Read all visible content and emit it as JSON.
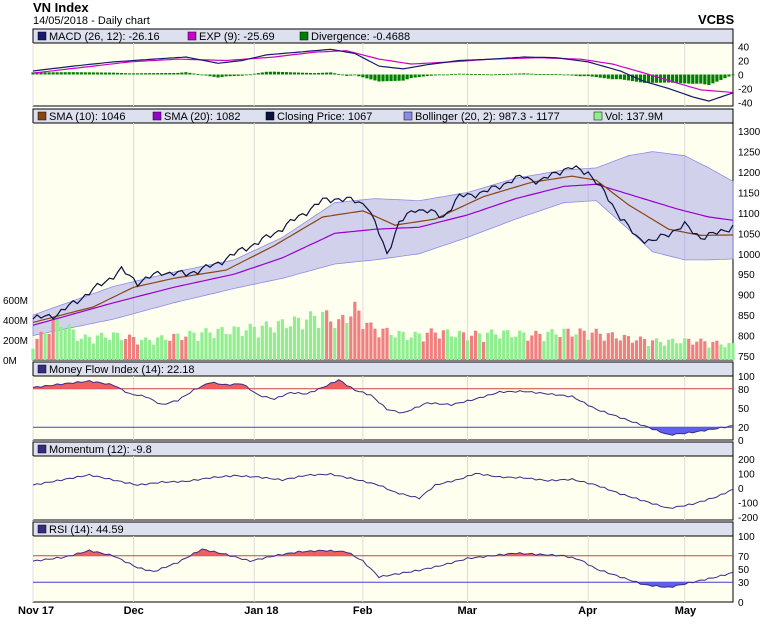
{
  "title": "VN Index",
  "subtitle": "14/05/2018 - Daily chart",
  "source": "VCBS",
  "x_labels": [
    "Nov 17",
    "Dec",
    "Jan 18",
    "Feb",
    "Mar",
    "Apr",
    "May"
  ],
  "colors": {
    "panel_bg": "#fffff0",
    "legend_bg": "#dde0ee",
    "grid": "#dcdcdc",
    "macd": "#191970",
    "exp": "#cc00cc",
    "divergence": "#008000",
    "sma10": "#8b4513",
    "sma20": "#9900cc",
    "close": "#0b1140",
    "bollinger": "#8c8ce6",
    "vol_up": "#90ee90",
    "vol_down": "#f08080",
    "indicator_line": "#3a2a88",
    "overbought_fill": "#f06060",
    "oversold_fill": "#6060ee"
  },
  "panels": {
    "macd": {
      "legend": [
        "MACD (26, 12): -26.16",
        "EXP (9): -25.69",
        "Divergence: -0.4688"
      ],
      "yticks": [
        "40",
        "20",
        "0",
        "-20",
        "-40"
      ]
    },
    "price": {
      "legend": [
        "SMA (10): 1046",
        "SMA (20): 1082",
        "Closing Price: 1067",
        "Bollinger (20, 2): 987.3 - 1177",
        "Vol: 137.9M"
      ],
      "yticks": [
        "1300",
        "1250",
        "1200",
        "1150",
        "1100",
        "1050",
        "1000",
        "950",
        "900",
        "850",
        "800",
        "750"
      ],
      "vol_ticks": [
        "600M",
        "400M",
        "200M",
        "0M"
      ]
    },
    "mfi": {
      "legend": [
        "Money Flow Index (14): 22.18"
      ],
      "yticks": [
        "100",
        "80",
        "50",
        "20",
        "0"
      ]
    },
    "momentum": {
      "legend": [
        "Momentum (12): -9.8"
      ],
      "yticks": [
        "200",
        "100",
        "0",
        "-100",
        "-200"
      ]
    },
    "rsi": {
      "legend": [
        "RSI (14): 44.59"
      ],
      "yticks": [
        "100",
        "70",
        "50",
        "30",
        "0"
      ]
    }
  },
  "chart_data": {
    "type": "line",
    "title": "VN Index",
    "x_key_labels": [
      "Nov 17",
      "Dec",
      "Jan 18",
      "Feb",
      "Mar",
      "Apr",
      "May"
    ],
    "price_ylim": [
      750,
      1300
    ],
    "close_keys": [
      [
        0,
        840
      ],
      [
        6,
        852
      ],
      [
        14,
        905
      ],
      [
        22,
        960
      ],
      [
        26,
        930
      ],
      [
        32,
        955
      ],
      [
        38,
        950
      ],
      [
        45,
        972
      ],
      [
        52,
        1010
      ],
      [
        56,
        1028
      ],
      [
        60,
        1050
      ],
      [
        66,
        1090
      ],
      [
        72,
        1130
      ],
      [
        75,
        1135
      ],
      [
        80,
        1130
      ],
      [
        83,
        1120
      ],
      [
        86,
        1050
      ],
      [
        88,
        1000
      ],
      [
        91,
        1075
      ],
      [
        95,
        1110
      ],
      [
        98,
        1105
      ],
      [
        102,
        1090
      ],
      [
        106,
        1140
      ],
      [
        112,
        1150
      ],
      [
        118,
        1175
      ],
      [
        122,
        1190
      ],
      [
        126,
        1175
      ],
      [
        130,
        1200
      ],
      [
        134,
        1210
      ],
      [
        138,
        1200
      ],
      [
        142,
        1150
      ],
      [
        146,
        1090
      ],
      [
        150,
        1040
      ],
      [
        154,
        1030
      ],
      [
        158,
        1050
      ],
      [
        162,
        1070
      ],
      [
        166,
        1040
      ],
      [
        170,
        1050
      ],
      [
        174,
        1067
      ]
    ],
    "sma10_keys": [
      [
        0,
        832
      ],
      [
        15,
        870
      ],
      [
        25,
        918
      ],
      [
        35,
        940
      ],
      [
        48,
        960
      ],
      [
        60,
        1020
      ],
      [
        72,
        1090
      ],
      [
        82,
        1105
      ],
      [
        90,
        1070
      ],
      [
        100,
        1085
      ],
      [
        112,
        1140
      ],
      [
        124,
        1175
      ],
      [
        134,
        1190
      ],
      [
        140,
        1180
      ],
      [
        148,
        1120
      ],
      [
        158,
        1060
      ],
      [
        166,
        1045
      ],
      [
        174,
        1046
      ]
    ],
    "sma20_keys": [
      [
        0,
        825
      ],
      [
        20,
        880
      ],
      [
        35,
        918
      ],
      [
        50,
        950
      ],
      [
        62,
        990
      ],
      [
        75,
        1050
      ],
      [
        85,
        1060
      ],
      [
        96,
        1065
      ],
      [
        108,
        1095
      ],
      [
        120,
        1135
      ],
      [
        132,
        1165
      ],
      [
        140,
        1170
      ],
      [
        150,
        1140
      ],
      [
        160,
        1110
      ],
      [
        168,
        1090
      ],
      [
        174,
        1082
      ]
    ],
    "boll_upper_keys": [
      [
        0,
        850
      ],
      [
        20,
        920
      ],
      [
        35,
        955
      ],
      [
        50,
        985
      ],
      [
        62,
        1040
      ],
      [
        75,
        1125
      ],
      [
        85,
        1135
      ],
      [
        96,
        1130
      ],
      [
        108,
        1150
      ],
      [
        120,
        1185
      ],
      [
        132,
        1205
      ],
      [
        140,
        1210
      ],
      [
        148,
        1240
      ],
      [
        154,
        1250
      ],
      [
        162,
        1240
      ],
      [
        168,
        1210
      ],
      [
        174,
        1177
      ]
    ],
    "boll_lower_keys": [
      [
        0,
        800
      ],
      [
        20,
        840
      ],
      [
        35,
        880
      ],
      [
        50,
        915
      ],
      [
        62,
        940
      ],
      [
        75,
        975
      ],
      [
        85,
        985
      ],
      [
        96,
        1000
      ],
      [
        108,
        1040
      ],
      [
        120,
        1085
      ],
      [
        132,
        1125
      ],
      [
        140,
        1130
      ],
      [
        148,
        1060
      ],
      [
        154,
        1005
      ],
      [
        162,
        985
      ],
      [
        168,
        985
      ],
      [
        174,
        987.3
      ]
    ],
    "volume_keys": [
      [
        0,
        150
      ],
      [
        6,
        380
      ],
      [
        12,
        200
      ],
      [
        20,
        230
      ],
      [
        28,
        180
      ],
      [
        36,
        220
      ],
      [
        44,
        260
      ],
      [
        52,
        280
      ],
      [
        60,
        320
      ],
      [
        66,
        360
      ],
      [
        72,
        420
      ],
      [
        76,
        340
      ],
      [
        80,
        470
      ],
      [
        84,
        300
      ],
      [
        88,
        260
      ],
      [
        94,
        220
      ],
      [
        100,
        260
      ],
      [
        108,
        230
      ],
      [
        116,
        250
      ],
      [
        124,
        230
      ],
      [
        132,
        260
      ],
      [
        140,
        250
      ],
      [
        148,
        200
      ],
      [
        156,
        170
      ],
      [
        164,
        180
      ],
      [
        174,
        138
      ]
    ],
    "macd_keys": [
      [
        0,
        5
      ],
      [
        10,
        12
      ],
      [
        20,
        18
      ],
      [
        30,
        22
      ],
      [
        38,
        25
      ],
      [
        46,
        16
      ],
      [
        52,
        20
      ],
      [
        58,
        28
      ],
      [
        66,
        32
      ],
      [
        74,
        36
      ],
      [
        80,
        30
      ],
      [
        86,
        12
      ],
      [
        92,
        8
      ],
      [
        98,
        14
      ],
      [
        106,
        20
      ],
      [
        114,
        22
      ],
      [
        122,
        25
      ],
      [
        130,
        24
      ],
      [
        138,
        18
      ],
      [
        146,
        5
      ],
      [
        152,
        -10
      ],
      [
        158,
        -20
      ],
      [
        164,
        -32
      ],
      [
        168,
        -38
      ],
      [
        174,
        -26.16
      ]
    ],
    "exp_keys": [
      [
        0,
        2
      ],
      [
        12,
        10
      ],
      [
        24,
        18
      ],
      [
        36,
        22
      ],
      [
        48,
        20
      ],
      [
        60,
        25
      ],
      [
        70,
        32
      ],
      [
        78,
        34
      ],
      [
        86,
        22
      ],
      [
        94,
        15
      ],
      [
        104,
        18
      ],
      [
        114,
        22
      ],
      [
        126,
        24
      ],
      [
        136,
        22
      ],
      [
        144,
        15
      ],
      [
        152,
        2
      ],
      [
        160,
        -12
      ],
      [
        166,
        -22
      ],
      [
        174,
        -25.69
      ]
    ],
    "mfi_keys": [
      [
        0,
        82
      ],
      [
        8,
        88
      ],
      [
        14,
        92
      ],
      [
        20,
        86
      ],
      [
        24,
        72
      ],
      [
        28,
        68
      ],
      [
        32,
        55
      ],
      [
        36,
        62
      ],
      [
        40,
        78
      ],
      [
        44,
        90
      ],
      [
        48,
        86
      ],
      [
        52,
        88
      ],
      [
        56,
        70
      ],
      [
        60,
        64
      ],
      [
        64,
        74
      ],
      [
        68,
        72
      ],
      [
        72,
        82
      ],
      [
        76,
        94
      ],
      [
        80,
        78
      ],
      [
        84,
        70
      ],
      [
        88,
        48
      ],
      [
        92,
        42
      ],
      [
        98,
        58
      ],
      [
        104,
        55
      ],
      [
        110,
        64
      ],
      [
        116,
        75
      ],
      [
        122,
        76
      ],
      [
        128,
        72
      ],
      [
        134,
        68
      ],
      [
        140,
        48
      ],
      [
        146,
        35
      ],
      [
        152,
        22
      ],
      [
        158,
        8
      ],
      [
        164,
        12
      ],
      [
        170,
        18
      ],
      [
        174,
        22.18
      ]
    ],
    "momentum_keys": [
      [
        0,
        20
      ],
      [
        8,
        60
      ],
      [
        14,
        90
      ],
      [
        20,
        55
      ],
      [
        26,
        20
      ],
      [
        32,
        40
      ],
      [
        38,
        45
      ],
      [
        44,
        70
      ],
      [
        50,
        85
      ],
      [
        56,
        75
      ],
      [
        62,
        55
      ],
      [
        68,
        88
      ],
      [
        74,
        95
      ],
      [
        80,
        60
      ],
      [
        86,
        20
      ],
      [
        90,
        -30
      ],
      [
        96,
        -70
      ],
      [
        100,
        20
      ],
      [
        106,
        60
      ],
      [
        110,
        100
      ],
      [
        116,
        75
      ],
      [
        122,
        70
      ],
      [
        128,
        50
      ],
      [
        134,
        60
      ],
      [
        140,
        20
      ],
      [
        146,
        -40
      ],
      [
        152,
        -90
      ],
      [
        158,
        -140
      ],
      [
        164,
        -110
      ],
      [
        170,
        -60
      ],
      [
        174,
        -9.8
      ]
    ],
    "rsi_keys": [
      [
        0,
        62
      ],
      [
        8,
        68
      ],
      [
        14,
        78
      ],
      [
        20,
        70
      ],
      [
        26,
        52
      ],
      [
        30,
        46
      ],
      [
        36,
        60
      ],
      [
        42,
        80
      ],
      [
        48,
        72
      ],
      [
        54,
        62
      ],
      [
        60,
        70
      ],
      [
        66,
        76
      ],
      [
        72,
        78
      ],
      [
        78,
        76
      ],
      [
        82,
        62
      ],
      [
        86,
        38
      ],
      [
        90,
        42
      ],
      [
        96,
        48
      ],
      [
        102,
        56
      ],
      [
        108,
        66
      ],
      [
        114,
        70
      ],
      [
        120,
        74
      ],
      [
        126,
        72
      ],
      [
        132,
        70
      ],
      [
        136,
        64
      ],
      [
        140,
        50
      ],
      [
        146,
        38
      ],
      [
        152,
        26
      ],
      [
        158,
        22
      ],
      [
        164,
        30
      ],
      [
        170,
        38
      ],
      [
        174,
        44.59
      ]
    ]
  }
}
